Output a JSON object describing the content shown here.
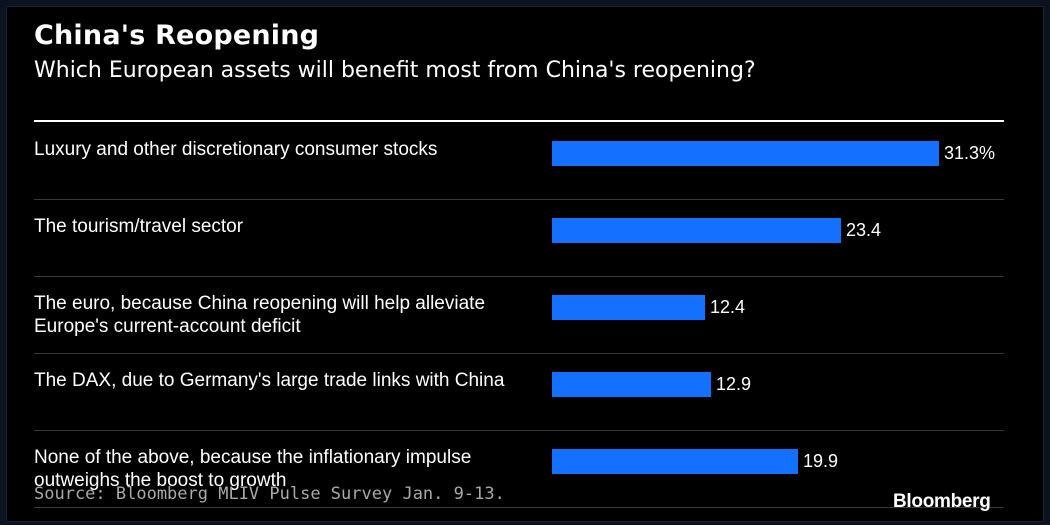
{
  "header": {
    "title": "China's Reopening",
    "subtitle": "Which European assets will benefit most from China's reopening?"
  },
  "footer": {
    "source": "Source: Bloomberg MLIV Pulse Survey Jan. 9-13.",
    "logo": "Bloomberg"
  },
  "colors": {
    "bar": "#1470ff",
    "background": "#000000",
    "text": "#ffffff"
  },
  "chart_data": {
    "type": "bar",
    "orientation": "horizontal",
    "title": "China's Reopening",
    "subtitle": "Which European assets will benefit most from China's reopening?",
    "categories": [
      "Luxury and other discretionary consumer stocks",
      "The tourism/travel sector",
      "The euro, because China reopening will help alleviate Europe's current-account deficit",
      "The DAX, due to Germany's large trade links with China",
      "None of the above, because the inflationary impulse outweighs the boost to growth"
    ],
    "values": [
      31.3,
      23.4,
      12.4,
      12.9,
      19.9
    ],
    "value_labels": [
      "31.3%",
      "23.4",
      "12.4",
      "12.9",
      "19.9"
    ],
    "xlim": [
      0,
      31.3
    ],
    "grid": false,
    "legend": "none"
  }
}
